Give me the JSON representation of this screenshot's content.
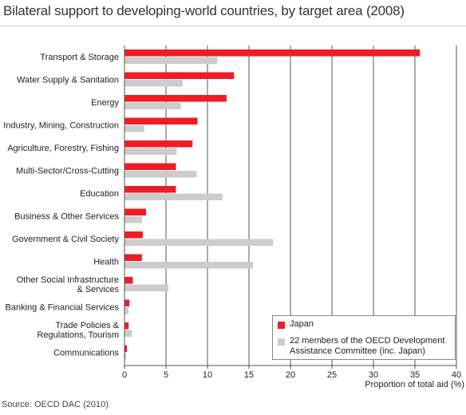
{
  "chart_data": {
    "type": "bar",
    "orientation": "horizontal",
    "title": "Bilateral support to developing-world countries, by target area (2008)",
    "xlabel": "Proportion of total aid (%)",
    "ylabel": "",
    "xlim": [
      0,
      40
    ],
    "xticks": [
      "0",
      "5",
      "10",
      "15",
      "20",
      "25",
      "30",
      "35",
      "40"
    ],
    "grid": "vertical",
    "legend_position": "bottom-right",
    "categories": [
      [
        "Transport & Storage"
      ],
      [
        "Water Supply & Sanitation"
      ],
      [
        "Energy"
      ],
      [
        "Industry, Mining, Construction"
      ],
      [
        "Agriculture, Forestry, Fishing"
      ],
      [
        "Multi-Sector/Cross-Cutting"
      ],
      [
        "Education"
      ],
      [
        "Business & Other Services"
      ],
      [
        "Government & Civil Society"
      ],
      [
        "Health"
      ],
      [
        "Other Social Infrastructure",
        "& Services"
      ],
      [
        "Banking & Financial Services"
      ],
      [
        "Trade Policies &",
        "Regulations, Tourism"
      ],
      [
        "Communications"
      ]
    ],
    "series": [
      {
        "name": "Japan",
        "color": "#ee1c25",
        "values": [
          35.6,
          13.2,
          12.3,
          8.8,
          8.2,
          6.2,
          6.2,
          2.6,
          2.2,
          2.1,
          1.0,
          0.6,
          0.5,
          0.3
        ]
      },
      {
        "name": "22 members of the OECD Development Assistance Committee (inc. Japan)",
        "color": "#cccccc",
        "values": [
          11.2,
          7.0,
          6.8,
          2.4,
          6.3,
          8.7,
          11.8,
          2.1,
          17.9,
          15.5,
          5.3,
          0.5,
          0.9,
          0.2
        ]
      }
    ]
  },
  "legend": {
    "japan": "Japan",
    "dac_line1": "22 members of the OECD Development",
    "dac_line2": "Assistance Committee (inc. Japan)"
  },
  "source": "Source: OECD DAC (2010)"
}
